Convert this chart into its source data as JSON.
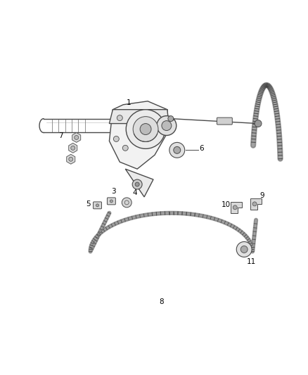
{
  "bg_color": "#ffffff",
  "line_color": "#4a4a4a",
  "label_color": "#000000",
  "fig_width": 4.38,
  "fig_height": 5.33,
  "dpi": 100
}
